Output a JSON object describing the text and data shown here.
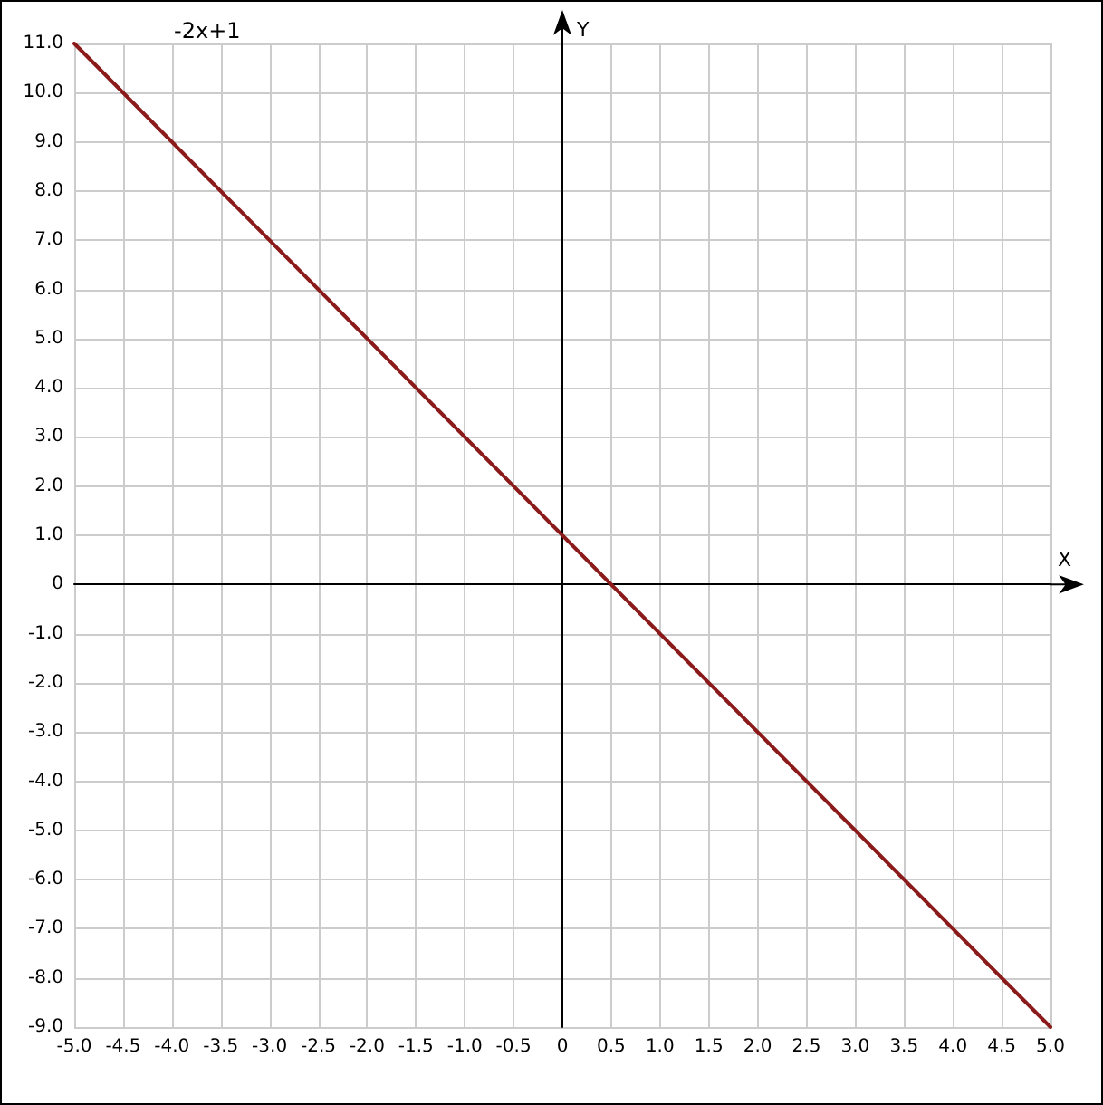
{
  "chart_data": {
    "type": "line",
    "title": "-2x+1",
    "xlabel": "X",
    "ylabel": "Y",
    "x": [
      -5,
      5
    ],
    "series": [
      {
        "color": "#8b1a1a",
        "values": [
          11,
          -9
        ]
      }
    ],
    "xlim": [
      -5,
      5
    ],
    "xticks": [
      {
        "value": -5,
        "label": "-5.0"
      },
      {
        "value": -4.5,
        "label": "-4.5"
      },
      {
        "value": -4,
        "label": "-4.0"
      },
      {
        "value": -3.5,
        "label": "-3.5"
      },
      {
        "value": -3,
        "label": "-3.0"
      },
      {
        "value": -2.5,
        "label": "-2.5"
      },
      {
        "value": -2,
        "label": "-2.0"
      },
      {
        "value": -1.5,
        "label": "-1.5"
      },
      {
        "value": -1,
        "label": "-1.0"
      },
      {
        "value": -0.5,
        "label": "-0.5"
      },
      0,
      {
        "value": 0.5,
        "label": "0.5"
      },
      {
        "value": 1,
        "label": "1.0"
      },
      {
        "value": 1.5,
        "label": "1.5"
      },
      {
        "value": 2,
        "label": "2.0"
      },
      {
        "value": 2.5,
        "label": "2.5"
      },
      {
        "value": 3,
        "label": "3.0"
      },
      {
        "value": 3.5,
        "label": "3.5"
      },
      {
        "value": 4,
        "label": "4.0"
      },
      {
        "value": 4.5,
        "label": "4.5"
      },
      {
        "value": 5,
        "label": "5.0"
      }
    ],
    "ylim": [
      -9,
      11
    ],
    "yticks": [
      {
        "value": -9,
        "label": "-9.0"
      },
      {
        "value": -8,
        "label": "-8.0"
      },
      {
        "value": -7,
        "label": "-7.0"
      },
      {
        "value": -6,
        "label": "-6.0"
      },
      {
        "value": -5,
        "label": "-5.0"
      },
      {
        "value": -4,
        "label": "-4.0"
      },
      {
        "value": -3,
        "label": "-3.0"
      },
      {
        "value": -2,
        "label": "-2.0"
      },
      {
        "value": -1,
        "label": "-1.0"
      },
      0,
      {
        "value": 1,
        "label": "1.0"
      },
      {
        "value": 2,
        "label": "2.0"
      },
      {
        "value": 3,
        "label": "3.0"
      },
      {
        "value": 4,
        "label": "4.0"
      },
      {
        "value": 5,
        "label": "5.0"
      },
      {
        "value": 6,
        "label": "6.0"
      },
      {
        "value": 7,
        "label": "7.0"
      },
      {
        "value": 8,
        "label": "8.0"
      },
      {
        "value": 9,
        "label": "9.0"
      },
      {
        "value": 10,
        "label": "10.0"
      },
      {
        "value": 11,
        "label": "11.0"
      }
    ],
    "grid": true,
    "marker": "none",
    "line_style": "solid"
  }
}
